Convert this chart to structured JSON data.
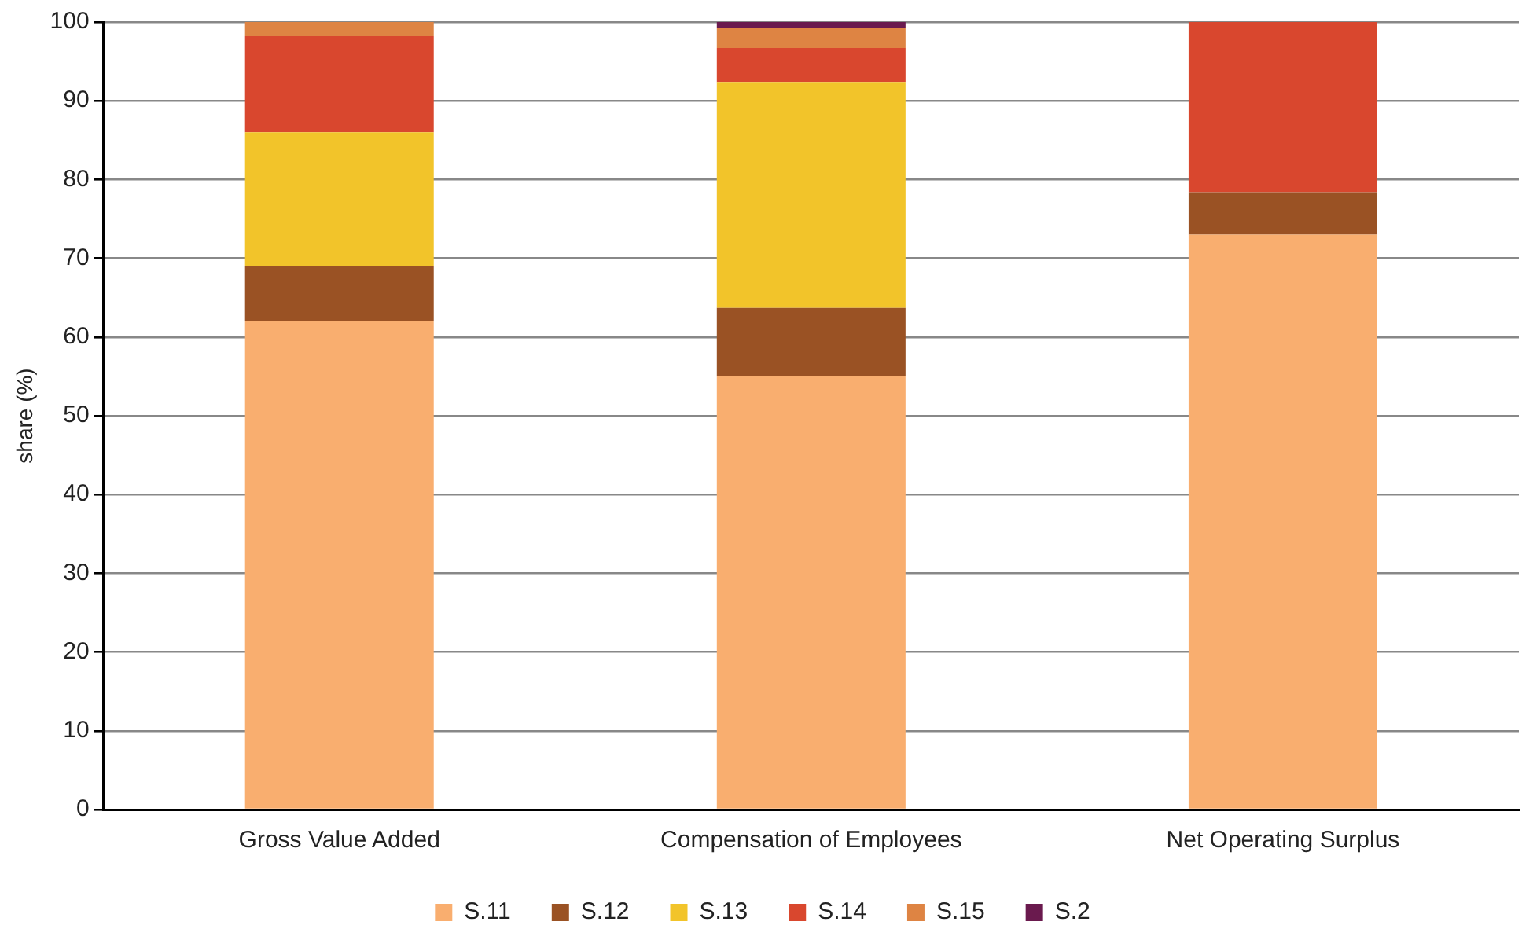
{
  "chart_data": {
    "type": "bar",
    "stacked": true,
    "ylabel": "share (%)",
    "categories": [
      "Gross Value Added",
      "Compensation of Employees",
      "Net Operating Surplus"
    ],
    "series": [
      {
        "name": "S.11",
        "color": "#f9ae6f",
        "values": [
          62,
          55,
          73
        ]
      },
      {
        "name": "S.12",
        "color": "#9a5224",
        "values": [
          7,
          8.7,
          5.4
        ]
      },
      {
        "name": "S.13",
        "color": "#f2c42a",
        "values": [
          17,
          28.7,
          0
        ]
      },
      {
        "name": "S.14",
        "color": "#d9472e",
        "values": [
          12.2,
          4.3,
          21.6
        ]
      },
      {
        "name": "S.15",
        "color": "#de8443",
        "values": [
          1.8,
          2.5,
          0
        ]
      },
      {
        "name": "S.2",
        "color": "#6a1a4e",
        "values": [
          0,
          0.8,
          0
        ]
      }
    ],
    "ylim": [
      0,
      100
    ],
    "yticks": [
      0,
      10,
      20,
      30,
      40,
      50,
      60,
      70,
      80,
      90,
      100
    ],
    "grid": "y",
    "legend": "bottom"
  }
}
